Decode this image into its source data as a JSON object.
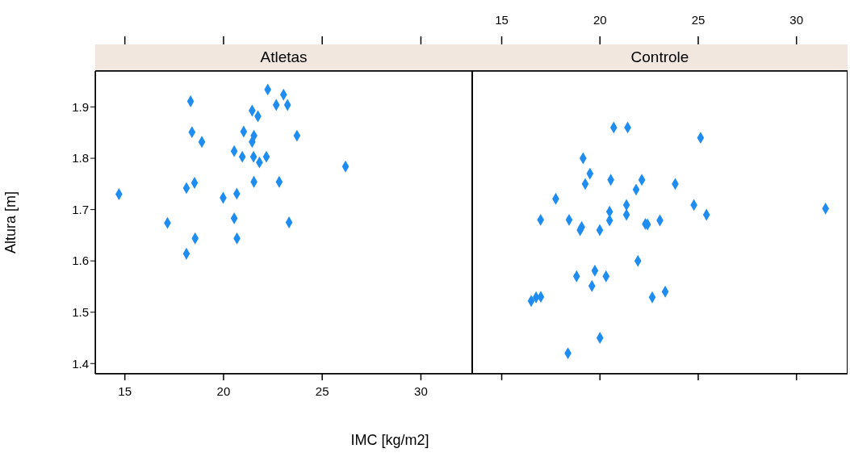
{
  "chart_data": [
    {
      "type": "scatter",
      "title": "Atletas",
      "xlabel": "IMC [kg/m2]",
      "ylabel": "Altura [m]",
      "color": "#1e8cf0",
      "marker": "diamond",
      "grid": false,
      "x": [
        14.7,
        17.16,
        18.33,
        18.4,
        18.9,
        18.12,
        18.53,
        18.56,
        18.12,
        19.98,
        20.67,
        20.54,
        20.68,
        20.54,
        20.95,
        21.02,
        21.45,
        21.74,
        21.54,
        21.45,
        21.52,
        21.82,
        22.17,
        21.54,
        22.82,
        23.32,
        22.24,
        23.04,
        22.67,
        23.24,
        23.72,
        26.18
      ],
      "values": [
        1.73,
        1.674,
        1.911,
        1.851,
        1.832,
        1.742,
        1.752,
        1.644,
        1.614,
        1.723,
        1.731,
        1.683,
        1.644,
        1.814,
        1.803,
        1.852,
        1.893,
        1.882,
        1.844,
        1.832,
        1.803,
        1.792,
        1.803,
        1.754,
        1.754,
        1.675,
        1.934,
        1.924,
        1.904,
        1.904,
        1.844,
        1.784
      ],
      "xlim": [
        13.5,
        32.6
      ],
      "ylim": [
        1.38,
        1.97
      ],
      "xticks": [
        15,
        20,
        25,
        30
      ],
      "yticks": [
        1.4,
        1.5,
        1.6,
        1.7,
        1.8,
        1.9
      ]
    },
    {
      "type": "scatter",
      "title": "Controle",
      "color": "#1e8cf0",
      "marker": "diamond",
      "grid": false,
      "tick_labels": "x",
      "x": [
        20.7,
        21.41,
        25.12,
        19.14,
        19.49,
        20.55,
        22.13,
        19.25,
        23.83,
        21.84,
        17.75,
        21.35,
        24.78,
        31.48,
        20.49,
        21.35,
        25.42,
        16.98,
        18.43,
        20.49,
        23.05,
        22.31,
        22.42,
        19.07,
        18.99,
        19.99,
        21.93,
        19.74,
        18.81,
        20.31,
        19.59,
        23.32,
        22.66,
        16.5,
        16.75,
        16.99,
        20.0,
        18.37
      ],
      "values": [
        1.86,
        1.86,
        1.84,
        1.8,
        1.77,
        1.758,
        1.758,
        1.75,
        1.75,
        1.739,
        1.721,
        1.709,
        1.709,
        1.702,
        1.696,
        1.69,
        1.69,
        1.68,
        1.68,
        1.679,
        1.679,
        1.672,
        1.671,
        1.666,
        1.66,
        1.66,
        1.6,
        1.581,
        1.57,
        1.57,
        1.551,
        1.54,
        1.529,
        1.522,
        1.529,
        1.53,
        1.45,
        1.42
      ],
      "xlim": [
        13.5,
        32.6
      ],
      "ylim": [
        1.38,
        1.97
      ],
      "xticks": [
        15,
        20,
        25,
        30
      ],
      "yticks": [
        1.4,
        1.5,
        1.6,
        1.7,
        1.8,
        1.9
      ]
    }
  ]
}
